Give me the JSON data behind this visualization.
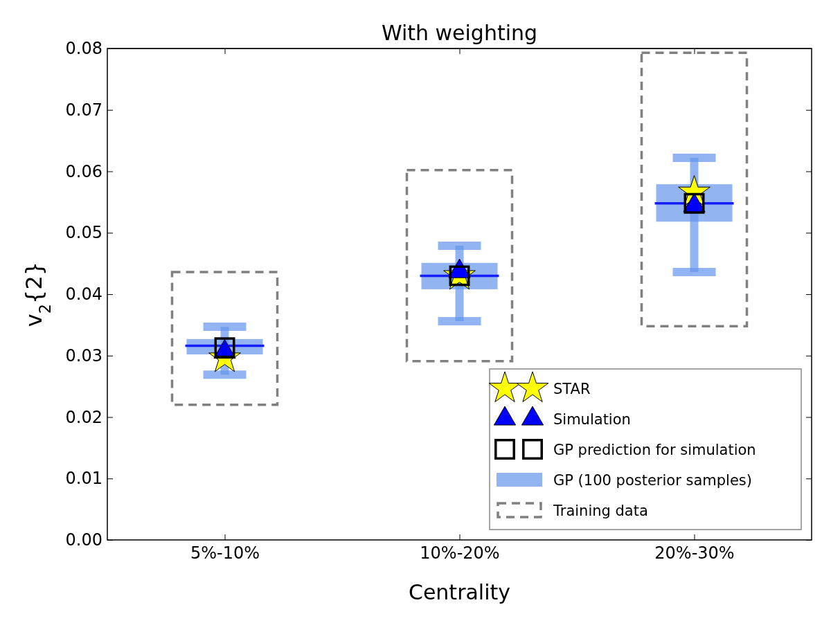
{
  "chart_data": {
    "type": "box",
    "title": "With weighting",
    "xlabel": "Centrality",
    "ylabel": "v$_{2}${2}",
    "categories": [
      "5%-10%",
      "10%-20%",
      "20%-30%"
    ],
    "ylim": [
      0,
      0.08
    ],
    "yticks": [
      {
        "value": 0,
        "label": "0.00"
      },
      0.01,
      0.02,
      0.03,
      0.04,
      0.05,
      0.06,
      0.07,
      0.08
    ],
    "grid": false,
    "legend": "bottom right",
    "series": [
      {
        "name": "Training data",
        "type": "bar",
        "color": "#808080",
        "line_style": "dashed",
        "base": [
          0.022,
          0.0291,
          0.0348
        ],
        "values": [
          0.0216,
          0.0311,
          0.0445
        ]
      },
      {
        "name": "GP (100 posterior samples)",
        "color": "#6495ed",
        "boxes": [
          {
            "low": 0.0269,
            "q1": 0.0302,
            "median": 0.0316,
            "q3": 0.0327,
            "high": 0.0347
          },
          {
            "low": 0.0356,
            "q1": 0.0408,
            "median": 0.043,
            "q3": 0.0451,
            "high": 0.0479
          },
          {
            "low": 0.0436,
            "q1": 0.0518,
            "median": 0.0548,
            "q3": 0.0579,
            "high": 0.0622
          }
        ]
      },
      {
        "name": "STAR",
        "type": "scatter",
        "marker": "star",
        "color": "#ffff00",
        "x": [
          "5%-10%",
          "10%-20%",
          "20%-30%"
        ],
        "values": [
          0.0296,
          0.043,
          0.0566
        ]
      },
      {
        "name": "Simulation",
        "type": "scatter",
        "marker": "triangle",
        "color": "#0000ff",
        "x": [
          "5%-10%",
          "10%-20%",
          "20%-30%"
        ],
        "values": [
          0.0306,
          0.0437,
          0.0544
        ]
      },
      {
        "name": "GP prediction for simulation",
        "type": "scatter",
        "marker": "square",
        "color": "#000000",
        "x": [
          "5%-10%",
          "10%-20%",
          "20%-30%"
        ],
        "values": [
          0.0313,
          0.043,
          0.0548
        ]
      }
    ]
  }
}
